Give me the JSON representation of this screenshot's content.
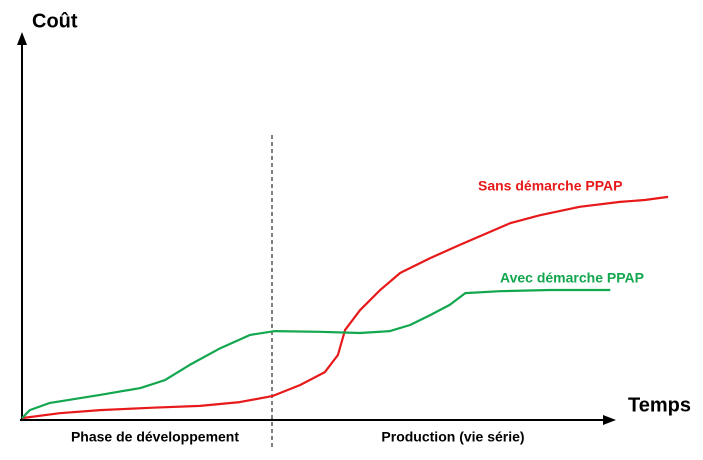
{
  "chart_data": {
    "type": "line",
    "y_label": "Coût",
    "x_label": "Temps",
    "annotations": [
      "Phase de développement",
      "Production (vie série)"
    ],
    "xlim": [
      0,
      100
    ],
    "ylim": [
      0,
      100
    ],
    "series": [
      {
        "name": "Sans démarche PPAP",
        "color": "#e8191a",
        "x": [
          0,
          5.8,
          12,
          19.7,
          27.4,
          33.5,
          38.5,
          42.8,
          46.6,
          48.6,
          49.7,
          52,
          55.1,
          58.2,
          62.8,
          67.4,
          72,
          75.1,
          79.7,
          85.8,
          92,
          95.8,
          99.4
        ],
        "values": [
          0.5,
          1.8,
          2.6,
          3.2,
          3.7,
          4.7,
          6.3,
          9.2,
          12.6,
          17.1,
          23.7,
          28.9,
          34.2,
          38.7,
          42.6,
          46.1,
          49.5,
          51.8,
          53.9,
          56.1,
          57.4,
          57.9,
          58.7
        ]
      },
      {
        "name": "Avec démarche PPAP",
        "color": "#12a64e",
        "x": [
          0,
          1.2,
          4.3,
          12,
          18.2,
          22,
          25.8,
          30.5,
          35.1,
          38.9,
          45.8,
          52,
          56.6,
          59.7,
          62.8,
          65.8,
          68.2,
          73.5,
          81.2,
          90.5
        ],
        "values": [
          0.5,
          2.6,
          4.5,
          6.6,
          8.4,
          10.5,
          14.5,
          18.9,
          22.4,
          23.4,
          23.2,
          22.9,
          23.4,
          25,
          27.6,
          30.3,
          33.4,
          33.9,
          34.2,
          34.2
        ]
      }
    ]
  }
}
